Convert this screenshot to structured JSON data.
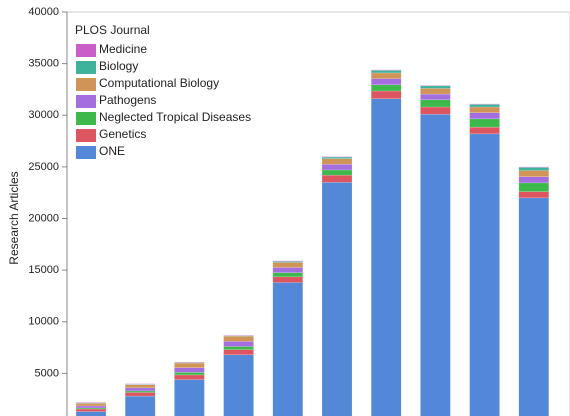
{
  "chart_data": {
    "type": "stacked-bar",
    "y_label": "Research Articles",
    "legend_title": "PLOS Journal",
    "legend": "top-left",
    "categories": [
      null,
      null,
      null,
      null,
      null,
      null,
      null,
      null,
      null,
      null
    ],
    "ylim": [
      0,
      40000
    ],
    "yticks": [
      5000,
      10000,
      15000,
      20000,
      25000,
      30000,
      35000,
      40000
    ],
    "series": [
      {
        "name": "ONE",
        "color": "#5387d8",
        "values": [
          1300,
          2800,
          4400,
          6800,
          13800,
          23500,
          31600,
          30100,
          28200,
          22000
        ]
      },
      {
        "name": "Genetics",
        "color": "#dd5560",
        "values": [
          250,
          350,
          450,
          500,
          550,
          700,
          750,
          700,
          650,
          600
        ]
      },
      {
        "name": "Neglected Tropical Diseases",
        "color": "#3cb94a",
        "values": [
          100,
          150,
          250,
          300,
          400,
          500,
          600,
          700,
          800,
          850
        ]
      },
      {
        "name": "Pathogens",
        "color": "#a56ee0",
        "values": [
          200,
          300,
          450,
          500,
          500,
          550,
          600,
          550,
          600,
          600
        ]
      },
      {
        "name": "Computational Biology",
        "color": "#d09457",
        "values": [
          250,
          300,
          450,
          500,
          500,
          550,
          550,
          550,
          550,
          600
        ]
      },
      {
        "name": "Biology",
        "color": "#3db39b",
        "values": [
          50,
          50,
          50,
          50,
          100,
          150,
          250,
          250,
          250,
          300
        ]
      },
      {
        "name": "Medicine",
        "color": "#c95ec9",
        "values": [
          50,
          50,
          50,
          50,
          50,
          50,
          50,
          50,
          50,
          50
        ]
      }
    ]
  }
}
